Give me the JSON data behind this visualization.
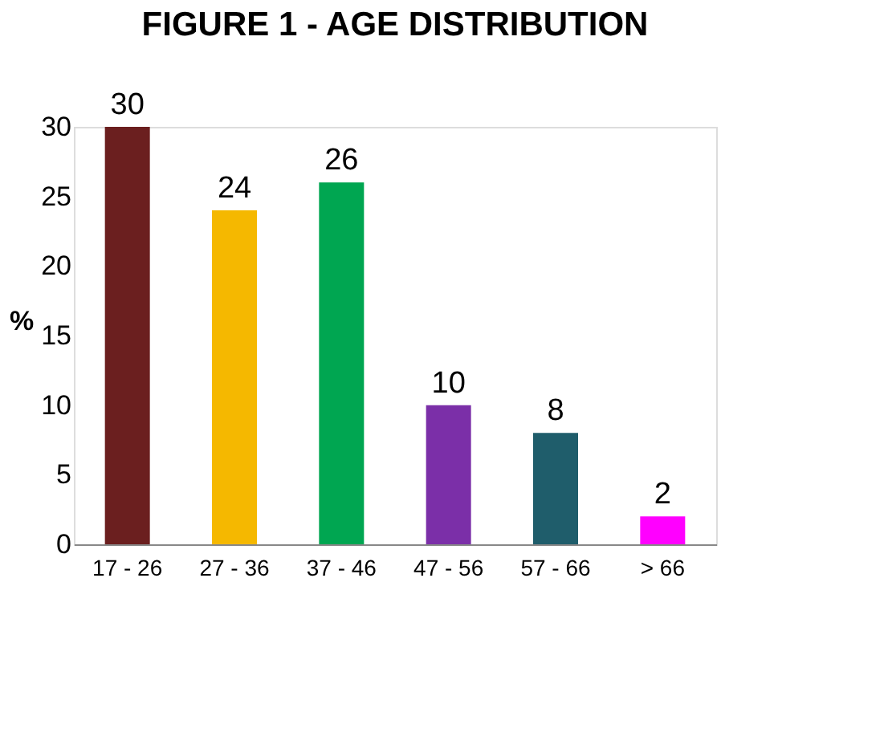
{
  "chart_data": {
    "type": "bar",
    "title": "FIGURE 1 - AGE DISTRIBUTION",
    "ylabel": "%",
    "categories": [
      "17 - 26",
      "27 - 36",
      "37 - 46",
      "47 - 56",
      "57 - 66",
      "> 66"
    ],
    "values": [
      30,
      24,
      26,
      10,
      8,
      2
    ],
    "colors": [
      "#6b1f1f",
      "#f5b800",
      "#00a651",
      "#7b2fa8",
      "#1f5d6b",
      "#ff00ff"
    ],
    "ylim": [
      0,
      30
    ],
    "yticks": [
      0,
      5,
      10,
      15,
      20,
      25,
      30
    ],
    "grid": false,
    "data_labels": true
  }
}
